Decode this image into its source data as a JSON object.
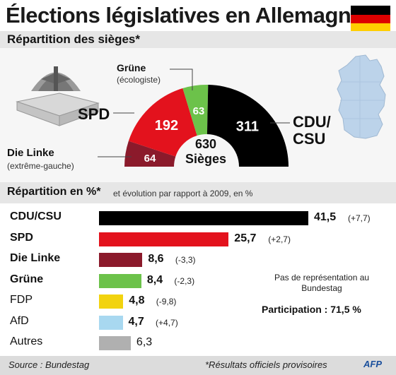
{
  "header": {
    "title": "Élections législatives en Allemagne",
    "flag_colors": [
      "#000000",
      "#dd0000",
      "#ffce00"
    ]
  },
  "section_seats": {
    "label": "Répartition des sièges*"
  },
  "section_percent": {
    "label": "Répartition en %*",
    "sublabel": "et évolution par rapport à 2009, en %"
  },
  "seats": {
    "total_value": "630",
    "total_label": "Sièges",
    "labels": {
      "grune": "Grüne",
      "grune_sub": "(écologiste)",
      "spd": "SPD",
      "linke": "Die Linke",
      "linke_sub": "(extrême-gauche)",
      "cdu_line1": "CDU/",
      "cdu_line2": "CSU"
    }
  },
  "notes": {
    "no_representation": "Pas de représentation au Bundestag",
    "participation": "Participation : 71,5 %"
  },
  "footer": {
    "source": "Source : Bundestag",
    "note": "*Résultats officiels provisoires",
    "logo": "AFP"
  },
  "chart_data": [
    {
      "type": "pie",
      "title": "Répartition des sièges*",
      "shape": "semicircle",
      "total": 630,
      "slices": [
        {
          "name": "Die Linke",
          "value": 64,
          "color": "#8b1a2b"
        },
        {
          "name": "SPD",
          "value": 192,
          "color": "#e3121d"
        },
        {
          "name": "Grüne",
          "value": 63,
          "color": "#6cc24a"
        },
        {
          "name": "CDU/CSU",
          "value": 311,
          "color": "#000000"
        }
      ]
    },
    {
      "type": "bar",
      "orientation": "horizontal",
      "title": "Répartition en %*",
      "subtitle": "et évolution par rapport à 2009, en %",
      "xlim": [
        0,
        41.5
      ],
      "series": [
        {
          "values": [
            41.5,
            25.7,
            8.6,
            8.4,
            4.8,
            4.7,
            6.3
          ]
        }
      ],
      "categories": [
        "CDU/CSU",
        "SPD",
        "Die Linke",
        "Grüne",
        "FDP",
        "AfD",
        "Autres"
      ],
      "value_labels": [
        "41,5",
        "25,7",
        "8,6",
        "8,4",
        "4,8",
        "4,7",
        "6,3"
      ],
      "change_labels": [
        "(+7,7)",
        "(+2,7)",
        "(-3,3)",
        "(-2,3)",
        "(-9,8)",
        "(+4,7)",
        ""
      ],
      "colors": [
        "#000000",
        "#e3121d",
        "#8b1a2b",
        "#6cc24a",
        "#f2d30f",
        "#a8d8f0",
        "#b0b0b0"
      ],
      "bold_labels": [
        true,
        true,
        true,
        true,
        false,
        false,
        false
      ]
    }
  ]
}
